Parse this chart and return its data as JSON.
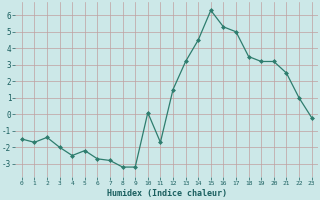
{
  "x": [
    0,
    1,
    2,
    3,
    4,
    5,
    6,
    7,
    8,
    9,
    10,
    11,
    12,
    13,
    14,
    15,
    16,
    17,
    18,
    19,
    20,
    21,
    22,
    23
  ],
  "y": [
    -1.5,
    -1.7,
    -1.4,
    -2.0,
    -2.5,
    -2.2,
    -2.7,
    -2.8,
    -3.2,
    -3.2,
    0.1,
    -1.7,
    1.5,
    3.2,
    4.5,
    6.3,
    5.3,
    5.0,
    3.5,
    3.2,
    3.2,
    2.5,
    1.0,
    -0.2
  ],
  "xlabel": "Humidex (Indice chaleur)",
  "ylim": [
    -3.8,
    6.8
  ],
  "xlim": [
    -0.5,
    23.5
  ],
  "yticks": [
    -3,
    -2,
    -1,
    0,
    1,
    2,
    3,
    4,
    5,
    6
  ],
  "xticks": [
    0,
    1,
    2,
    3,
    4,
    5,
    6,
    7,
    8,
    9,
    10,
    11,
    12,
    13,
    14,
    15,
    16,
    17,
    18,
    19,
    20,
    21,
    22,
    23
  ],
  "line_color": "#2e7d6e",
  "marker_color": "#2e7d6e",
  "bg_color": "#cce8e8",
  "grid_color": "#c0a0a0",
  "axis_bg": "#cce8e8",
  "xlabel_color": "#1a5f5f",
  "tick_color": "#1a5f5f"
}
